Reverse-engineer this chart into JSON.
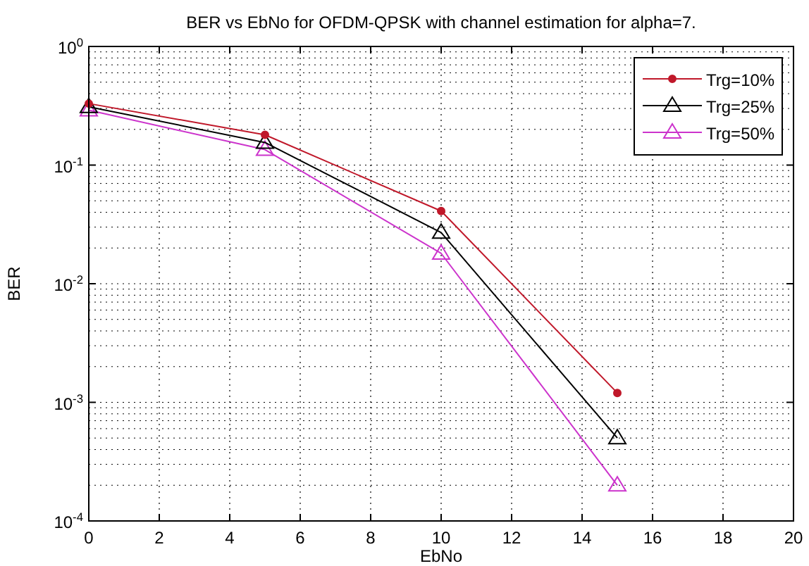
{
  "chart_data": {
    "type": "line",
    "title": "BER vs EbNo for OFDM-QPSK with channel estimation for alpha=7.",
    "xlabel": "EbNo",
    "ylabel": "BER",
    "x": [
      0,
      5,
      10,
      15
    ],
    "series": [
      {
        "name": "Trg=10%",
        "color": "#c0182a",
        "marker": "circle",
        "values": [
          0.33,
          0.18,
          0.041,
          0.0012
        ]
      },
      {
        "name": "Trg=25%",
        "color": "#000000",
        "marker": "triangle",
        "values": [
          0.31,
          0.155,
          0.027,
          0.0005
        ]
      },
      {
        "name": "Trg=50%",
        "color": "#cc33cc",
        "marker": "triangle",
        "values": [
          0.29,
          0.135,
          0.018,
          0.0002
        ]
      }
    ],
    "log": "y",
    "xlim": [
      0,
      20
    ],
    "xticks": [
      0,
      2,
      4,
      6,
      8,
      10,
      12,
      14,
      16,
      18,
      20
    ],
    "ylim": [
      0.0001,
      1
    ],
    "yticks": [
      {
        "value": 0.0001,
        "label": "10$^{-4}$"
      },
      {
        "value": 0.001,
        "label": "10$^{-3}$"
      },
      {
        "value": 0.01,
        "label": "10$^{-2}$"
      },
      {
        "value": 0.1,
        "label": "10$^{-1}$"
      },
      {
        "value": 1,
        "label": "10$^{0}$"
      }
    ],
    "grid": true,
    "legend": "top right",
    "line_style": "solid"
  }
}
